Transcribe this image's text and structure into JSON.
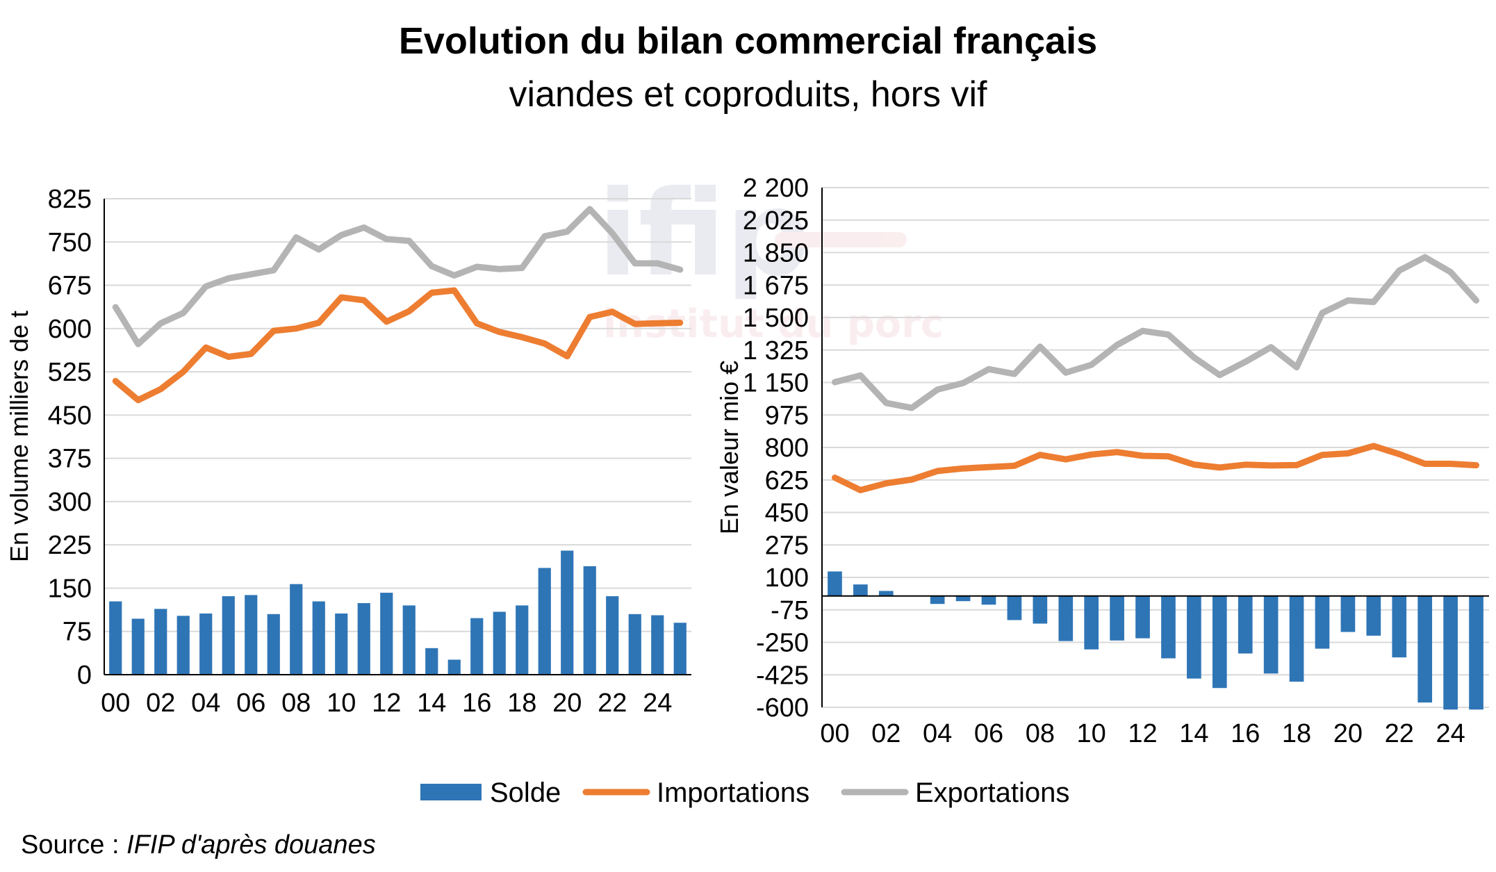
{
  "title": "Evolution du bilan commercial français",
  "subtitle": "viandes et coproduits, hors vif",
  "source_prefix": "Source : ",
  "source_name": "IFIP d'après douanes",
  "watermark": {
    "logo": "ifip",
    "tagline": "institut du porc"
  },
  "colors": {
    "solde": "#2e75b6",
    "importations": "#ed7d31",
    "exportations": "#b4b4b4",
    "grid": "#d9d9d9"
  },
  "legend": [
    {
      "key": "solde",
      "label": "Solde",
      "color": "#2e75b6"
    },
    {
      "key": "importations",
      "label": "Importations",
      "color": "#ed7d31"
    },
    {
      "key": "exportations",
      "label": "Exportations",
      "color": "#b4b4b4"
    }
  ],
  "chart_data": [
    {
      "type": "bar+line",
      "ylabel": "En volume milliers de t",
      "ylim": [
        0,
        825
      ],
      "yticks": [
        0,
        75,
        150,
        225,
        300,
        375,
        450,
        525,
        600,
        675,
        750,
        825
      ],
      "ytick_labels": [
        "0",
        "75",
        "150",
        "225",
        "300",
        "375",
        "450",
        "525",
        "600",
        "675",
        "750",
        "825"
      ],
      "x": [
        "00",
        "01",
        "02",
        "03",
        "04",
        "05",
        "06",
        "07",
        "08",
        "09",
        "10",
        "11",
        "12",
        "13",
        "14",
        "15",
        "16",
        "17",
        "18",
        "19",
        "20",
        "21",
        "22",
        "23",
        "24",
        "25"
      ],
      "xtick_labels": [
        "00",
        "",
        "02",
        "",
        "04",
        "",
        "06",
        "",
        "08",
        "",
        "10",
        "",
        "12",
        "",
        "14",
        "",
        "16",
        "",
        "18",
        "",
        "20",
        "",
        "22",
        "",
        "24",
        ""
      ],
      "grid": true,
      "series": [
        {
          "name": "Solde",
          "kind": "bar",
          "values": [
            127,
            97,
            114,
            102,
            106,
            136,
            138,
            105,
            157,
            127,
            106,
            124,
            142,
            120,
            46,
            26,
            98,
            109,
            120,
            185,
            215,
            188,
            136,
            105,
            103,
            90
          ]
        },
        {
          "name": "Importations",
          "kind": "line",
          "values": [
            509,
            476,
            495,
            525,
            567,
            551,
            556,
            596,
            600,
            610,
            654,
            649,
            612,
            630,
            662,
            666,
            609,
            594,
            585,
            574,
            552,
            620,
            629,
            608,
            609,
            610
          ]
        },
        {
          "name": "Exportations",
          "kind": "line",
          "values": [
            637,
            573,
            609,
            627,
            673,
            687,
            694,
            701,
            758,
            737,
            762,
            775,
            755,
            752,
            708,
            692,
            707,
            703,
            705,
            760,
            768,
            807,
            765,
            713,
            713,
            702
          ]
        }
      ]
    },
    {
      "type": "bar+line",
      "ylabel": "En valeur mio €",
      "ylim": [
        -600,
        2200
      ],
      "yticks": [
        -600,
        -425,
        -250,
        -75,
        100,
        275,
        450,
        625,
        800,
        975,
        1150,
        1325,
        1500,
        1675,
        1850,
        2025,
        2200
      ],
      "ytick_labels": [
        "-600",
        "-425",
        "-250",
        "-75",
        "100",
        "275",
        "450",
        "625",
        "800",
        "975",
        "1 150",
        "1 325",
        "1 500",
        "1 675",
        "1 850",
        "2 025",
        "2 200"
      ],
      "x": [
        "00",
        "01",
        "02",
        "03",
        "04",
        "05",
        "06",
        "07",
        "08",
        "09",
        "10",
        "11",
        "12",
        "13",
        "14",
        "15",
        "16",
        "17",
        "18",
        "19",
        "20",
        "21",
        "22",
        "23",
        "24",
        "25"
      ],
      "xtick_labels": [
        "00",
        "",
        "02",
        "",
        "04",
        "",
        "06",
        "",
        "08",
        "",
        "10",
        "",
        "12",
        "",
        "14",
        "",
        "16",
        "",
        "18",
        "",
        "20",
        "",
        "22",
        "",
        "24",
        ""
      ],
      "grid": true,
      "series": [
        {
          "name": "Solde",
          "kind": "bar",
          "values": [
            132,
            62,
            27,
            0,
            -43,
            -28,
            -47,
            -130,
            -149,
            -243,
            -288,
            -240,
            -228,
            -336,
            -445,
            -496,
            -310,
            -418,
            -462,
            -284,
            -194,
            -214,
            -331,
            -574,
            -612,
            -612
          ]
        },
        {
          "name": "Importations",
          "kind": "line",
          "values": [
            637,
            570,
            607,
            627,
            673,
            687,
            694,
            701,
            760,
            736,
            762,
            775,
            755,
            752,
            708,
            692,
            707,
            703,
            705,
            760,
            768,
            808,
            764,
            712,
            712,
            704
          ]
        },
        {
          "name": "Exportations",
          "kind": "line",
          "values": [
            1152,
            1188,
            1040,
            1013,
            1112,
            1147,
            1222,
            1196,
            1343,
            1203,
            1245,
            1352,
            1428,
            1408,
            1285,
            1190,
            1261,
            1340,
            1232,
            1525,
            1592,
            1584,
            1753,
            1825,
            1745,
            1592
          ]
        }
      ]
    }
  ]
}
